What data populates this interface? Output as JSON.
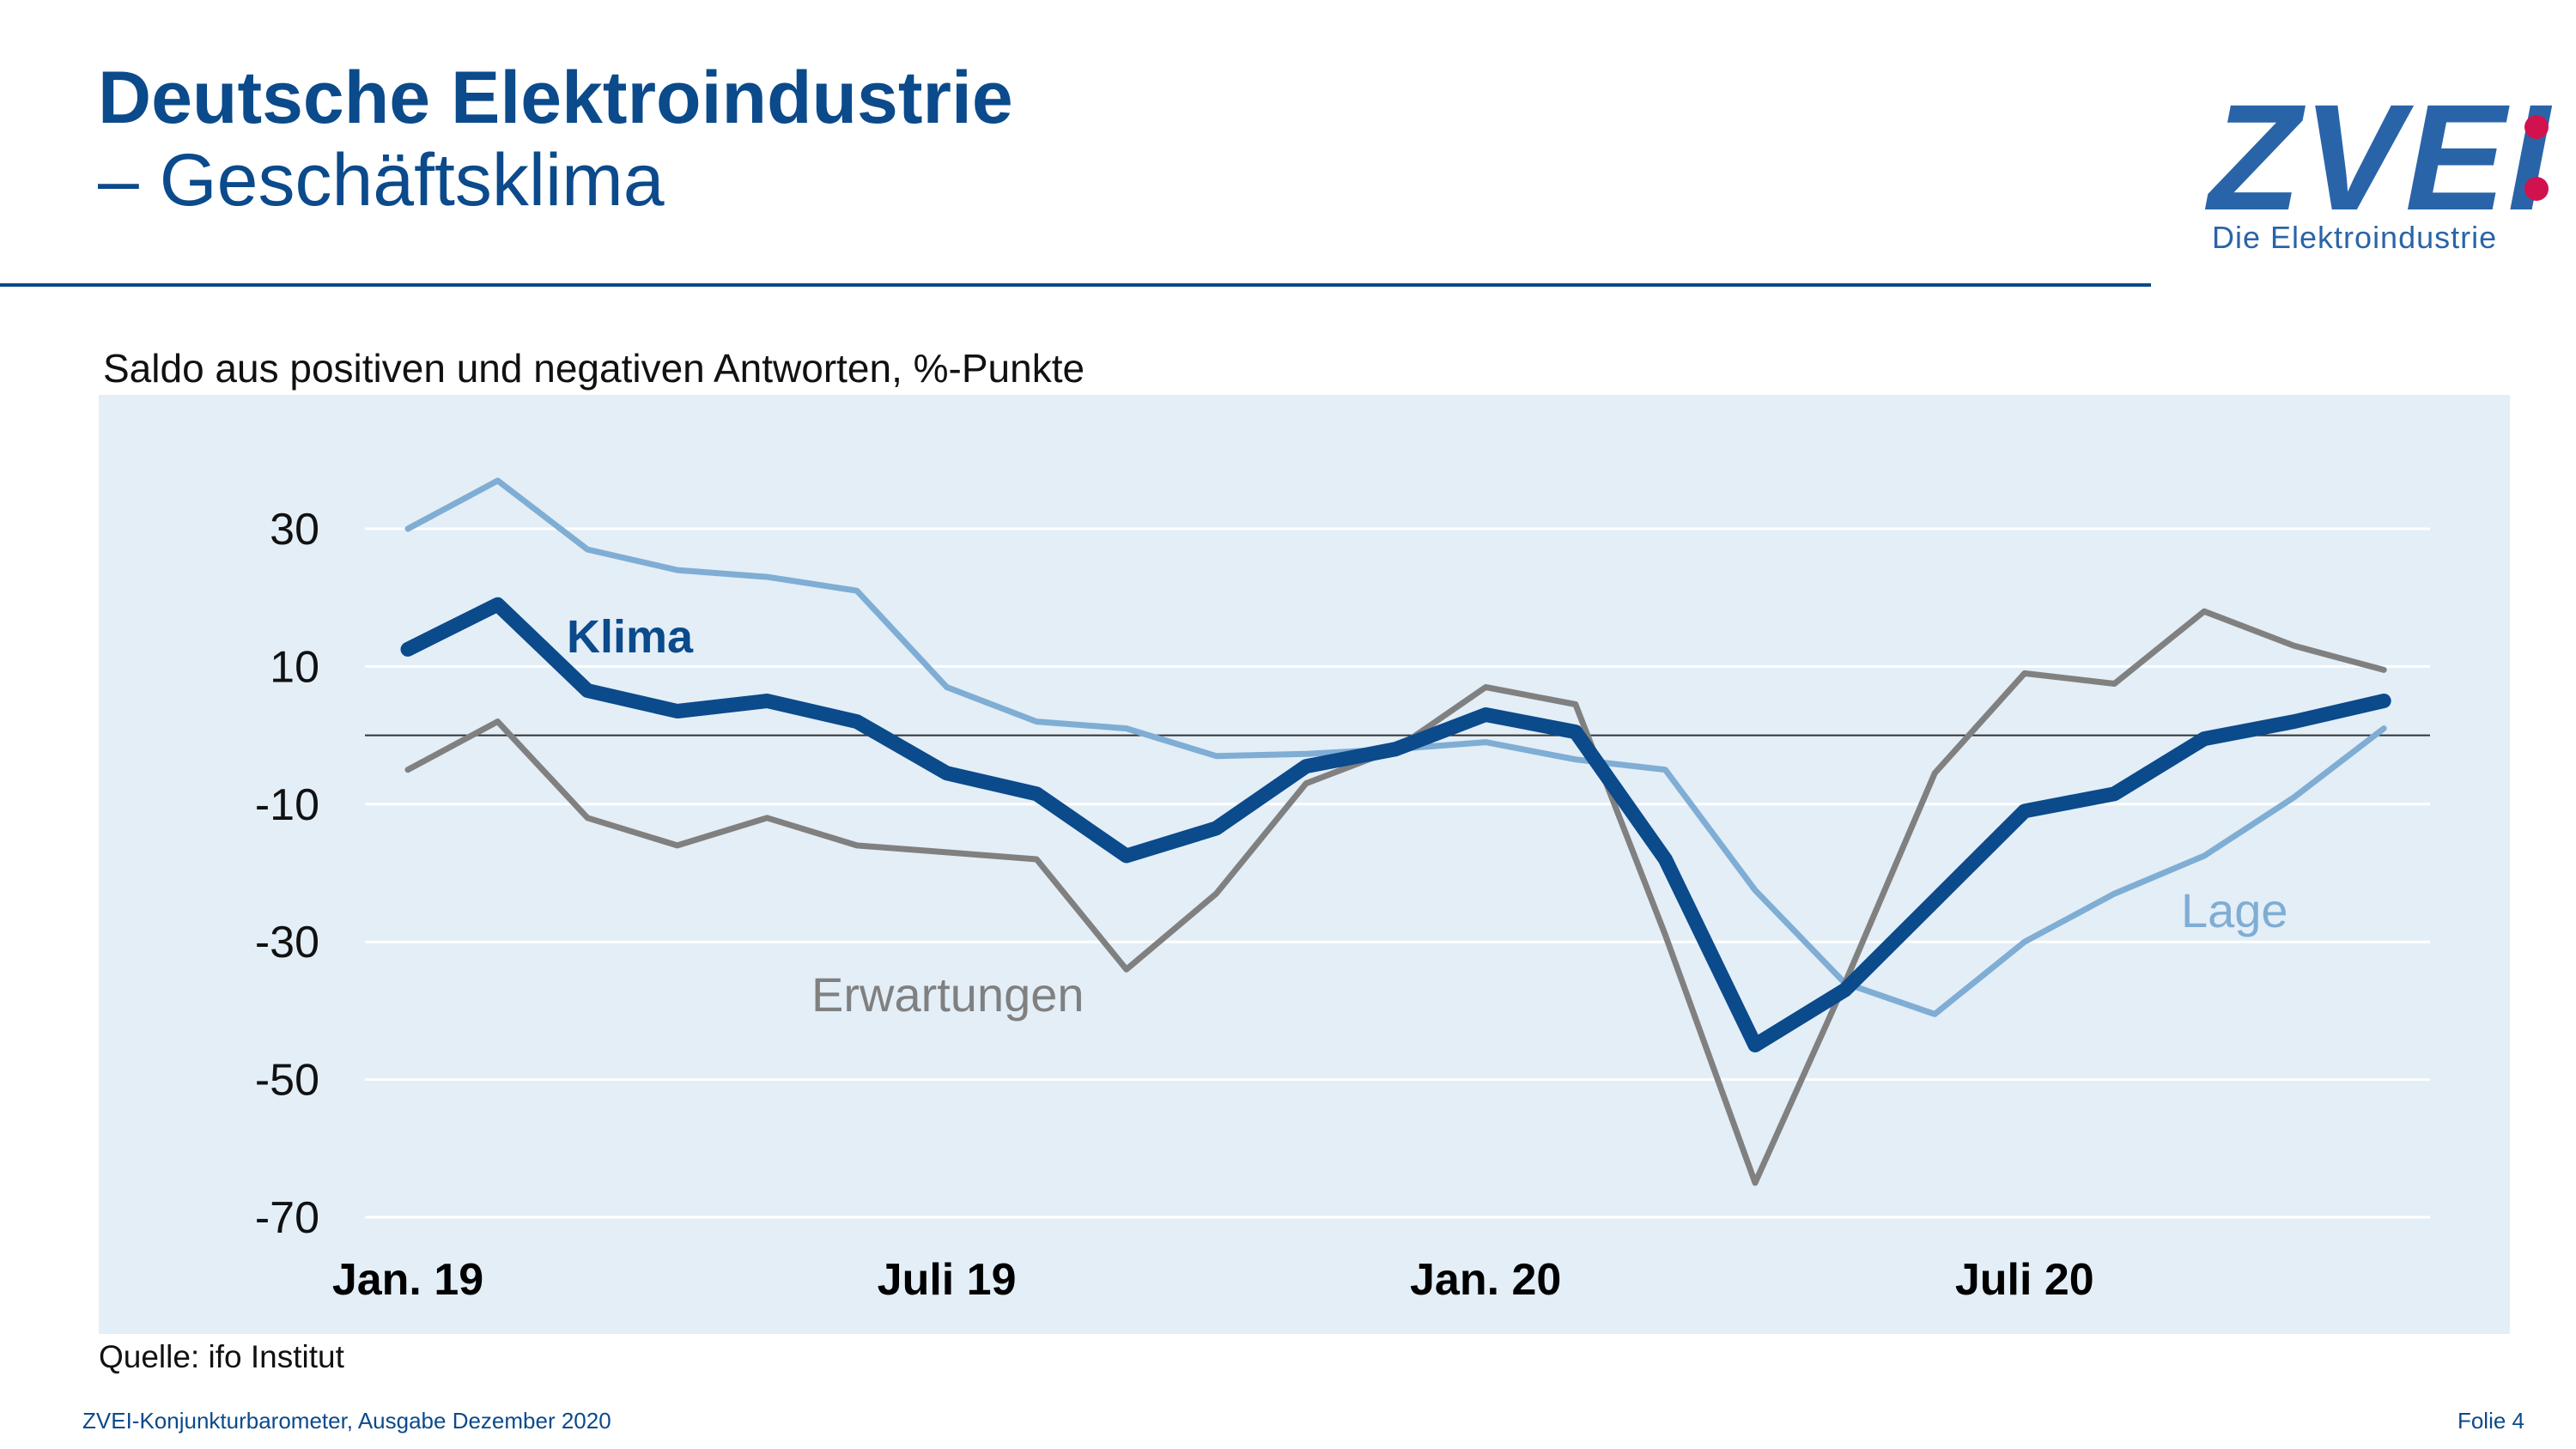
{
  "header": {
    "title": "Deutsche Elektroindustrie",
    "subtitle": "– Geschäftsklima"
  },
  "logo": {
    "wordmark": "ZVEI",
    "tagline": "Die Elektroindustrie",
    "colors": {
      "wordmark": "#2a64a8",
      "colon": "#d1124e"
    }
  },
  "chart_data": {
    "type": "line",
    "title": "",
    "ylabel": "Saldo aus positiven und negativen Antworten, %-Punkte",
    "xlabel": "",
    "ylim": [
      -70,
      40
    ],
    "yticks": [
      30,
      10,
      -10,
      -30,
      -50,
      -70
    ],
    "ytick_labels": [
      "30",
      "10",
      "-10",
      "-30",
      "-50",
      "-70"
    ],
    "x": [
      "Jan. 19",
      "Feb. 19",
      "Mär. 19",
      "Apr. 19",
      "Mai 19",
      "Juni 19",
      "Juli 19",
      "Aug. 19",
      "Sep. 19",
      "Okt. 19",
      "Nov. 19",
      "Dez. 19",
      "Jan. 20",
      "Feb. 20",
      "Mär. 20",
      "Apr. 20",
      "Mai 20",
      "Juni 20",
      "Juli 20",
      "Aug. 20",
      "Sep. 20",
      "Okt. 20",
      "Nov. 20"
    ],
    "xtick_labels": [
      {
        "index": 0,
        "label": "Jan. 19"
      },
      {
        "index": 6,
        "label": "Juli 19"
      },
      {
        "index": 12,
        "label": "Jan. 20"
      },
      {
        "index": 18,
        "label": "Juli 20"
      }
    ],
    "zero_line": true,
    "grid": true,
    "series": [
      {
        "name": "Lage",
        "color": "#7fadd4",
        "values": [
          30,
          37,
          27,
          24,
          23,
          21,
          7,
          2,
          1,
          -3,
          -2.7,
          -2,
          -1,
          -3.5,
          -5,
          -22.5,
          -36,
          -40.5,
          -30,
          -23,
          -17.5,
          -9,
          1
        ]
      },
      {
        "name": "Erwartungen",
        "color": "#808080",
        "values": [
          -5,
          2,
          -12,
          -16,
          -12,
          -16,
          -17,
          -18,
          -34,
          -23,
          -7,
          -2,
          7,
          4.5,
          -29,
          -65,
          -36,
          -5.5,
          9,
          7.5,
          18,
          13,
          9.5
        ]
      },
      {
        "name": "Klima",
        "color": "#0b4a8b",
        "values": [
          12.5,
          19,
          6.5,
          3.5,
          5,
          2,
          -5.5,
          -8.5,
          -17.5,
          -13.5,
          -4.5,
          -2,
          3,
          0.5,
          -18,
          -45,
          -37,
          -24,
          -11,
          -8.5,
          -0.5,
          2,
          5
        ]
      }
    ],
    "series_labels": {
      "Klima": "Klima",
      "Lage": "Lage",
      "Erwartungen": "Erwartungen"
    }
  },
  "source": "Quelle: ifo Institut",
  "footer": {
    "left": "ZVEI-Konjunkturbarometer, Ausgabe Dezember 2020",
    "right": "Folie 4"
  }
}
